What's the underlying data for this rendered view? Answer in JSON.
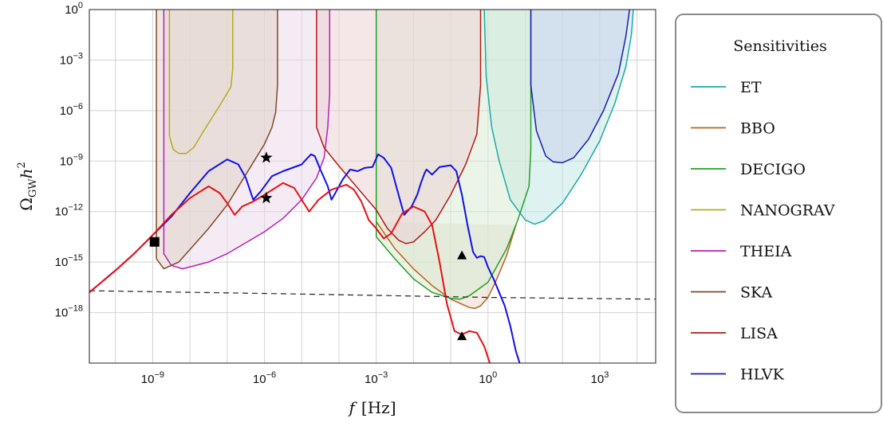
{
  "chart_data": {
    "type": "line",
    "title": "",
    "xlabel_main": "f",
    "xlabel_unit": "[Hz]",
    "ylabel_main": "Ω",
    "ylabel_sub": "GW",
    "ylabel_tail": "h",
    "ylabel_sup": "2",
    "xscale": "log",
    "yscale": "log",
    "xlim_log10": [
      -10.7,
      4.5
    ],
    "ylim_log10": [
      -21,
      0
    ],
    "grid": true,
    "x_ticks": [
      {
        "base": "10",
        "exp": "−9",
        "log": -9
      },
      {
        "base": "10",
        "exp": "−6",
        "log": -6
      },
      {
        "base": "10",
        "exp": "−3",
        "log": -3
      },
      {
        "base": "10",
        "exp": "0",
        "log": 0
      },
      {
        "base": "10",
        "exp": "3",
        "log": 3
      }
    ],
    "y_ticks": [
      {
        "base": "10",
        "exp": "0",
        "log": 0
      },
      {
        "base": "10",
        "exp": "−3",
        "log": -3
      },
      {
        "base": "10",
        "exp": "−6",
        "log": -6
      },
      {
        "base": "10",
        "exp": "−9",
        "log": -9
      },
      {
        "base": "10",
        "exp": "−12",
        "log": -12
      },
      {
        "base": "10",
        "exp": "−15",
        "log": -15
      },
      {
        "base": "10",
        "exp": "−18",
        "log": -18
      }
    ],
    "legend": {
      "title": "Sensitivities",
      "placement": "right, outside plot",
      "entries": [
        {
          "label": "ET",
          "color": "#1aaaa6"
        },
        {
          "label": "BBO",
          "color": "#b8621c"
        },
        {
          "label": "DECIGO",
          "color": "#22a022"
        },
        {
          "label": "NANOGRAV",
          "color": "#b2ac22"
        },
        {
          "label": "THEIA",
          "color": "#b61eb6"
        },
        {
          "label": "SKA",
          "color": "#7d4a26"
        },
        {
          "label": "LISA",
          "color": "#b01a1a"
        },
        {
          "label": "HLVK",
          "color": "#1b1bb0"
        }
      ]
    },
    "sensitivity_curves": [
      {
        "name": "ET",
        "color": "#1aaaa6",
        "fill": "#bfe6e5",
        "points": [
          [
            -0.1,
            0
          ],
          [
            -0.05,
            -4
          ],
          [
            0.1,
            -7
          ],
          [
            0.3,
            -9
          ],
          [
            0.6,
            -11.3
          ],
          [
            1,
            -12.5
          ],
          [
            1.25,
            -12.75
          ],
          [
            1.5,
            -12.55
          ],
          [
            2,
            -11.5
          ],
          [
            2.5,
            -9.8
          ],
          [
            3,
            -7.8
          ],
          [
            3.4,
            -5.6
          ],
          [
            3.7,
            -3.4
          ],
          [
            3.85,
            -1.5
          ],
          [
            3.9,
            0
          ]
        ]
      },
      {
        "name": "BBO",
        "color": "#b8621c",
        "fill": "#e8d7c8",
        "points": [
          [
            -3,
            -12.6
          ],
          [
            -2.5,
            -14.2
          ],
          [
            -2,
            -15.4
          ],
          [
            -1.5,
            -16.4
          ],
          [
            -1,
            -17.2
          ],
          [
            -0.5,
            -17.7
          ],
          [
            -0.35,
            -17.75
          ],
          [
            -0.2,
            -17.6
          ],
          [
            0,
            -17.1
          ],
          [
            0.2,
            -16.2
          ],
          [
            0.5,
            -14.6
          ],
          [
            0.75,
            -12.8
          ]
        ]
      },
      {
        "name": "DECIGO",
        "color": "#22a022",
        "fill": "#d6ecd2",
        "points": [
          [
            -3,
            0
          ],
          [
            -3,
            -13.5
          ],
          [
            -2.5,
            -14.8
          ],
          [
            -2,
            -16
          ],
          [
            -1.5,
            -16.8
          ],
          [
            -1,
            -17.15
          ],
          [
            -0.75,
            -17.2
          ],
          [
            -0.5,
            -17
          ],
          [
            0,
            -16.2
          ],
          [
            0.5,
            -14.2
          ],
          [
            0.8,
            -12.5
          ],
          [
            1.1,
            -10.5
          ],
          [
            1.15,
            -8.3
          ],
          [
            1.15,
            0
          ]
        ]
      },
      {
        "name": "NANOGRAV",
        "color": "#b2ac22",
        "fill": "#efeac6",
        "points": [
          [
            -8.55,
            0
          ],
          [
            -8.55,
            -7.5
          ],
          [
            -8.45,
            -8.3
          ],
          [
            -8.3,
            -8.55
          ],
          [
            -8.1,
            -8.55
          ],
          [
            -7.9,
            -8.2
          ],
          [
            -7.6,
            -7.1
          ],
          [
            -7.2,
            -5.7
          ],
          [
            -6.9,
            -4.6
          ],
          [
            -6.85,
            -3.5
          ],
          [
            -6.85,
            0
          ]
        ]
      },
      {
        "name": "THEIA",
        "color": "#b61eb6",
        "fill": "#ecd7ec",
        "points": [
          [
            -8.7,
            0
          ],
          [
            -8.7,
            -14.5
          ],
          [
            -8.5,
            -15.2
          ],
          [
            -8.2,
            -15.4
          ],
          [
            -7.5,
            -15
          ],
          [
            -7,
            -14.5
          ],
          [
            -6,
            -13.2
          ],
          [
            -5.5,
            -12.4
          ],
          [
            -5,
            -11.3
          ],
          [
            -4.6,
            -10
          ],
          [
            -4.4,
            -8.8
          ],
          [
            -4.3,
            -7
          ],
          [
            -4.25,
            -5
          ],
          [
            -4.25,
            0
          ]
        ]
      },
      {
        "name": "SKA",
        "color": "#7d4a26",
        "fill": "#e0d2c6",
        "points": [
          [
            -8.9,
            0
          ],
          [
            -8.9,
            -14.8
          ],
          [
            -8.7,
            -15.4
          ],
          [
            -8.3,
            -15
          ],
          [
            -7.5,
            -13
          ],
          [
            -7,
            -11.6
          ],
          [
            -6.5,
            -9.8
          ],
          [
            -6,
            -8
          ],
          [
            -5.8,
            -7
          ],
          [
            -5.7,
            -6.1
          ],
          [
            -5.65,
            -4.5
          ],
          [
            -5.65,
            0
          ]
        ]
      },
      {
        "name": "LISA",
        "color": "#b01a1a",
        "fill": "#ecd0d2",
        "points": [
          [
            -4.6,
            0
          ],
          [
            -4.6,
            -7
          ],
          [
            -4.4,
            -8.2
          ],
          [
            -4,
            -9.3
          ],
          [
            -3.5,
            -10.6
          ],
          [
            -3,
            -11.9
          ],
          [
            -2.7,
            -13
          ],
          [
            -2.4,
            -13.7
          ],
          [
            -2.2,
            -13.9
          ],
          [
            -2,
            -13.8
          ],
          [
            -1.7,
            -13.2
          ],
          [
            -1.4,
            -12.5
          ],
          [
            -1,
            -11
          ],
          [
            -0.6,
            -9.2
          ],
          [
            -0.3,
            -7.4
          ],
          [
            -0.2,
            -4.5
          ],
          [
            -0.2,
            0
          ]
        ]
      },
      {
        "name": "HLVK",
        "color": "#1b1bb0",
        "fill": "#c8cee8",
        "points": [
          [
            1.15,
            0
          ],
          [
            1.15,
            -4.5
          ],
          [
            1.3,
            -7.2
          ],
          [
            1.55,
            -8.7
          ],
          [
            1.75,
            -9.05
          ],
          [
            2,
            -9.1
          ],
          [
            2.3,
            -8.8
          ],
          [
            2.7,
            -7.7
          ],
          [
            3.1,
            -6
          ],
          [
            3.5,
            -3.8
          ],
          [
            3.7,
            -1.6
          ],
          [
            3.8,
            0
          ]
        ]
      }
    ],
    "spectra": [
      {
        "name": "blue model",
        "color": "#1010e8",
        "points": [
          [
            -10.7,
            -16.8
          ],
          [
            -10,
            -15.5
          ],
          [
            -9.5,
            -14.5
          ],
          [
            -9,
            -13.4
          ],
          [
            -8.5,
            -12.3
          ],
          [
            -8,
            -10.9
          ],
          [
            -7.5,
            -9.6
          ],
          [
            -7,
            -8.9
          ],
          [
            -6.7,
            -9.2
          ],
          [
            -6.5,
            -10
          ],
          [
            -6.3,
            -11.3
          ],
          [
            -6.1,
            -10.8
          ],
          [
            -5.8,
            -9.9
          ],
          [
            -5.5,
            -9.6
          ],
          [
            -5,
            -9.2
          ],
          [
            -4.9,
            -8.95
          ],
          [
            -4.75,
            -8.6
          ],
          [
            -4.65,
            -8.7
          ],
          [
            -4.5,
            -9.5
          ],
          [
            -4.3,
            -10.5
          ],
          [
            -4.2,
            -11.3
          ],
          [
            -4.1,
            -10.9
          ],
          [
            -3.9,
            -10.1
          ],
          [
            -3.7,
            -9.5
          ],
          [
            -3.5,
            -9.6
          ],
          [
            -3.3,
            -9.4
          ],
          [
            -3.1,
            -9.35
          ],
          [
            -2.95,
            -8.6
          ],
          [
            -2.8,
            -8.8
          ],
          [
            -2.6,
            -9.4
          ],
          [
            -2.4,
            -11
          ],
          [
            -2.25,
            -12.2
          ],
          [
            -2.05,
            -11.7
          ],
          [
            -1.9,
            -11
          ],
          [
            -1.8,
            -10.3
          ],
          [
            -1.7,
            -9.7
          ],
          [
            -1.65,
            -9.5
          ],
          [
            -1.5,
            -9.8
          ],
          [
            -1.3,
            -9.35
          ],
          [
            -1,
            -9.25
          ],
          [
            -0.85,
            -9.6
          ],
          [
            -0.7,
            -11
          ],
          [
            -0.55,
            -12.8
          ],
          [
            -0.4,
            -14.4
          ],
          [
            -0.3,
            -14.75
          ],
          [
            -0.2,
            -14.65
          ],
          [
            -0.1,
            -14.7
          ],
          [
            0,
            -15.3
          ],
          [
            0.15,
            -16
          ],
          [
            0.3,
            -16.8
          ],
          [
            0.45,
            -17.6
          ],
          [
            0.6,
            -18.8
          ],
          [
            0.75,
            -20.3
          ],
          [
            0.85,
            -21
          ]
        ]
      },
      {
        "name": "red model",
        "color": "#e81010",
        "points": [
          [
            -10.7,
            -16.8
          ],
          [
            -10,
            -15.5
          ],
          [
            -9.5,
            -14.5
          ],
          [
            -9,
            -13.4
          ],
          [
            -8.5,
            -12.2
          ],
          [
            -8,
            -11.2
          ],
          [
            -7.5,
            -10.5
          ],
          [
            -7.2,
            -10.9
          ],
          [
            -7,
            -11.5
          ],
          [
            -6.8,
            -12.2
          ],
          [
            -6.6,
            -11.7
          ],
          [
            -6.3,
            -11.4
          ],
          [
            -6,
            -11
          ],
          [
            -5.5,
            -10.3
          ],
          [
            -5.2,
            -10.6
          ],
          [
            -5,
            -11.3
          ],
          [
            -4.8,
            -12
          ],
          [
            -4.55,
            -11.3
          ],
          [
            -4.2,
            -10.7
          ],
          [
            -3.8,
            -10.4
          ],
          [
            -3.6,
            -10.7
          ],
          [
            -3.4,
            -11.4
          ],
          [
            -3.2,
            -12.5
          ],
          [
            -3,
            -13
          ],
          [
            -2.8,
            -13.6
          ],
          [
            -2.6,
            -13.3
          ],
          [
            -2.3,
            -12.1
          ],
          [
            -2,
            -11.7
          ],
          [
            -1.7,
            -12
          ],
          [
            -1.5,
            -12.8
          ],
          [
            -1.3,
            -15
          ],
          [
            -1.1,
            -17.5
          ],
          [
            -0.9,
            -19.1
          ],
          [
            -0.7,
            -19.3
          ],
          [
            -0.5,
            -19.1
          ],
          [
            -0.3,
            -19.2
          ],
          [
            -0.1,
            -20
          ],
          [
            0.05,
            -21
          ]
        ]
      }
    ],
    "reference_line": {
      "style": "dashed",
      "color": "#222222",
      "points": [
        [
          -10.7,
          -16.7
        ],
        [
          -5,
          -16.9
        ],
        [
          0,
          -17.1
        ],
        [
          4.5,
          -17.2
        ]
      ]
    },
    "markers": [
      {
        "shape": "square",
        "x_log10": -8.95,
        "y_log10": -13.8
      },
      {
        "shape": "star",
        "x_log10": -5.95,
        "y_log10": -8.8
      },
      {
        "shape": "star",
        "x_log10": -5.95,
        "y_log10": -11.2
      },
      {
        "shape": "triangle",
        "x_log10": -0.7,
        "y_log10": -14.6
      },
      {
        "shape": "triangle",
        "x_log10": -0.7,
        "y_log10": -19.4
      }
    ]
  }
}
